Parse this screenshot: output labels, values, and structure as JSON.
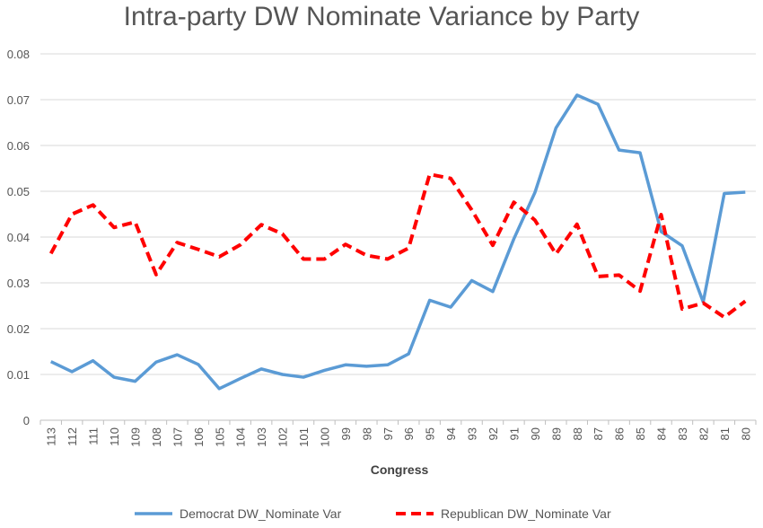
{
  "chart_data": {
    "type": "line",
    "title": "Intra-party DW Nominate Variance by Party",
    "xlabel": "Congress",
    "ylabel": "",
    "ylim": [
      0,
      0.08
    ],
    "yticks": [
      "0",
      "0.01",
      "0.02",
      "0.03",
      "0.04",
      "0.05",
      "0.06",
      "0.07",
      "0.08"
    ],
    "grid": "horizontal",
    "legend_position": "bottom",
    "categories": [
      "113",
      "112",
      "111",
      "110",
      "109",
      "108",
      "107",
      "106",
      "105",
      "104",
      "103",
      "102",
      "101",
      "100",
      "99",
      "98",
      "97",
      "96",
      "95",
      "94",
      "93",
      "92",
      "91",
      "90",
      "89",
      "88",
      "87",
      "86",
      "85",
      "84",
      "83",
      "82",
      "81",
      "80"
    ],
    "series": [
      {
        "name": "Democrat DW_Nominate Var",
        "color": "#5b9bd5",
        "style": "solid",
        "values": [
          0.0128,
          0.0106,
          0.013,
          0.0094,
          0.0085,
          0.0127,
          0.0143,
          0.0122,
          0.0069,
          0.0091,
          0.0112,
          0.01,
          0.0094,
          0.0109,
          0.0121,
          0.0118,
          0.0121,
          0.0145,
          0.0262,
          0.0247,
          0.0305,
          0.0281,
          0.0396,
          0.0497,
          0.0638,
          0.071,
          0.069,
          0.059,
          0.0584,
          0.0412,
          0.0381,
          0.0258,
          0.0495,
          0.0498
        ]
      },
      {
        "name": "Republican DW_Nominate Var",
        "color": "#ff0000",
        "style": "dashed",
        "values": [
          0.0364,
          0.045,
          0.047,
          0.0421,
          0.0433,
          0.0318,
          0.0388,
          0.0373,
          0.0357,
          0.0383,
          0.0427,
          0.0407,
          0.0352,
          0.0352,
          0.0384,
          0.036,
          0.0352,
          0.0376,
          0.0537,
          0.0528,
          0.0459,
          0.0382,
          0.0476,
          0.0437,
          0.0363,
          0.0428,
          0.0314,
          0.0317,
          0.0282,
          0.0449,
          0.0243,
          0.0256,
          0.0225,
          0.026
        ]
      }
    ]
  }
}
